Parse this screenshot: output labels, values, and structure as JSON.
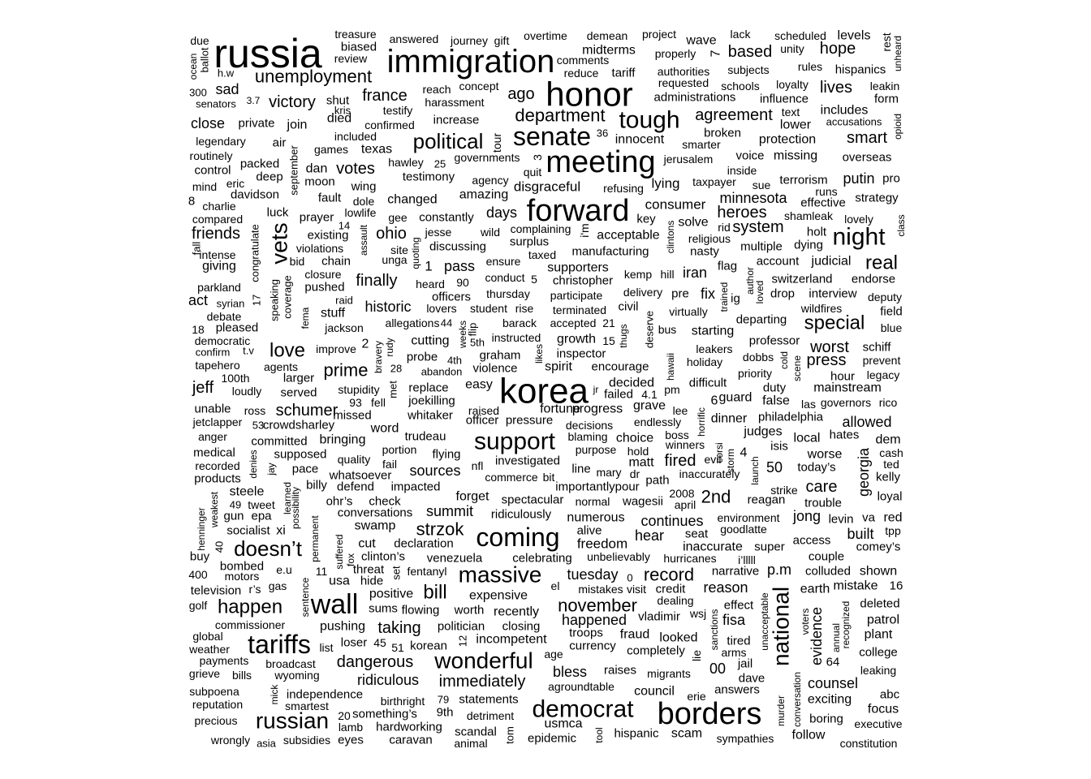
{
  "text_color": "#000000",
  "background": "#ffffff",
  "words": [
    {
      "t": "russia",
      "s": 50
    },
    {
      "t": "immigration",
      "s": 40
    },
    {
      "t": "honor",
      "s": 42
    },
    {
      "t": "meeting",
      "s": 38
    },
    {
      "t": "forward",
      "s": 38
    },
    {
      "t": "korea",
      "s": 44
    },
    {
      "t": "borders",
      "s": 38
    },
    {
      "t": "senate",
      "s": 32
    },
    {
      "t": "tough",
      "s": 30
    },
    {
      "t": "wall",
      "s": 34
    },
    {
      "t": "tariffs",
      "s": 32
    },
    {
      "t": "coming",
      "s": 32
    },
    {
      "t": "support",
      "s": 30
    },
    {
      "t": "wonderful",
      "s": 28
    },
    {
      "t": "democrat",
      "s": 30
    },
    {
      "t": "russian",
      "s": 28
    },
    {
      "t": "massive",
      "s": 28
    },
    {
      "t": "vets",
      "s": 28
    },
    {
      "t": "national",
      "s": 28
    },
    {
      "t": "night",
      "s": 30
    },
    {
      "t": "doesn’t",
      "s": 26
    },
    {
      "t": "political",
      "s": 26
    },
    {
      "t": "unemployment",
      "s": 22
    },
    {
      "t": "department",
      "s": 22
    },
    {
      "t": "love",
      "s": 24
    },
    {
      "t": "happen",
      "s": 24
    },
    {
      "t": "bill",
      "s": 24
    },
    {
      "t": "prime",
      "s": 22
    },
    {
      "t": "november",
      "s": 22
    },
    {
      "t": "special",
      "s": 24
    },
    {
      "t": "real",
      "s": 24
    },
    {
      "t": "record",
      "s": 22
    },
    {
      "t": "strzok",
      "s": 22
    },
    {
      "t": "2nd",
      "s": 22
    },
    {
      "t": "dangerous",
      "s": 20
    },
    {
      "t": "victory",
      "s": 20
    },
    {
      "t": "france",
      "s": 20
    },
    {
      "t": "based",
      "s": 20
    },
    {
      "t": "hope",
      "s": 20
    },
    {
      "t": "lives",
      "s": 20
    },
    {
      "t": "smart",
      "s": 20
    },
    {
      "t": "agreement",
      "s": 20
    },
    {
      "t": "votes",
      "s": 20
    },
    {
      "t": "friends",
      "s": 20
    },
    {
      "t": "ohio",
      "s": 20
    },
    {
      "t": "finally",
      "s": 20
    },
    {
      "t": "historic",
      "s": 18
    },
    {
      "t": "schumer",
      "s": 20
    },
    {
      "t": "jeff",
      "s": 20
    },
    {
      "t": "taking",
      "s": 20
    },
    {
      "t": "fired",
      "s": 20
    },
    {
      "t": "immediately",
      "s": 20
    },
    {
      "t": "ridiculous",
      "s": 18
    },
    {
      "t": "reason",
      "s": 18
    },
    {
      "t": "worst",
      "s": 20
    },
    {
      "t": "press",
      "s": 20
    },
    {
      "t": "counsel",
      "s": 18
    },
    {
      "t": "care",
      "s": 20
    },
    {
      "t": "allowed",
      "s": 18
    },
    {
      "t": "system",
      "s": 20
    },
    {
      "t": "heroes",
      "s": 20
    },
    {
      "t": "minnesota",
      "s": 18
    },
    {
      "t": "putin",
      "s": 18
    },
    {
      "t": "georgia",
      "s": 18
    },
    {
      "t": "evidence",
      "s": 18
    },
    {
      "t": "sources",
      "s": 18
    },
    {
      "t": "summit",
      "s": 18
    },
    {
      "t": "expensive",
      "s": 16
    },
    {
      "t": "happened",
      "s": 18
    },
    {
      "t": "fisa",
      "s": 18
    },
    {
      "t": "tuesday",
      "s": 18
    },
    {
      "t": "positive",
      "s": 16
    },
    {
      "t": "pushing",
      "s": 16
    },
    {
      "t": "jong",
      "s": 18
    },
    {
      "t": "built",
      "s": 18
    },
    {
      "t": "worse",
      "s": 16
    },
    {
      "t": "p.m",
      "s": 18
    },
    {
      "t": "starting",
      "s": 16
    },
    {
      "t": "iran",
      "s": 18
    },
    {
      "t": "fix",
      "s": 18
    },
    {
      "t": "tuesday",
      "s": 0
    },
    {
      "t": "pass",
      "s": 18
    },
    {
      "t": "days",
      "s": 18
    },
    {
      "t": "amazing",
      "s": 16
    },
    {
      "t": "changed",
      "s": 16
    },
    {
      "t": "texas",
      "s": 16
    },
    {
      "t": "protection",
      "s": 16
    },
    {
      "t": "join",
      "s": 16
    },
    {
      "t": "close",
      "s": 18
    },
    {
      "t": "sad",
      "s": 18
    },
    {
      "t": "died",
      "s": 16
    },
    {
      "t": "ago",
      "s": 20
    },
    {
      "t": "mainstream",
      "s": 16
    },
    {
      "t": "judges",
      "s": 16
    },
    {
      "t": "false",
      "s": 16
    },
    {
      "t": "local",
      "s": 16
    },
    {
      "t": "dinner",
      "s": 16
    },
    {
      "t": "bless",
      "s": 18
    },
    {
      "t": "00",
      "s": 18
    },
    {
      "t": "council",
      "s": 16
    },
    {
      "t": "scam",
      "s": 16
    },
    {
      "t": "exciting",
      "s": 16
    },
    {
      "t": "focus",
      "s": 16
    },
    {
      "t": "patrol",
      "s": 16
    },
    {
      "t": "easy",
      "s": 16
    },
    {
      "t": "progress",
      "s": 16
    },
    {
      "t": "choice",
      "s": 16
    },
    {
      "t": "fortune",
      "s": 16
    },
    {
      "t": "usmca",
      "s": 16
    },
    {
      "t": "tour",
      "s": 14
    },
    {
      "t": "giving",
      "s": 16
    },
    {
      "t": "act",
      "s": 18
    },
    {
      "t": "usa",
      "s": 16
    },
    {
      "t": "cut",
      "s": 16
    },
    {
      "t": "steele",
      "s": 16
    },
    {
      "t": "bringing",
      "s": 16
    }
  ]
}
